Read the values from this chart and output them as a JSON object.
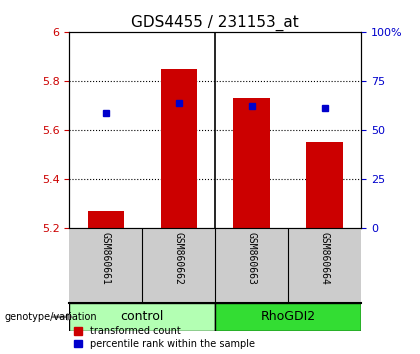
{
  "title": "GDS4455 / 231153_at",
  "samples": [
    "GSM860661",
    "GSM860662",
    "GSM860663",
    "GSM860664"
  ],
  "bar_bottoms": [
    5.2,
    5.2,
    5.2,
    5.2
  ],
  "bar_tops": [
    5.27,
    5.85,
    5.73,
    5.55
  ],
  "percentile_values": [
    5.67,
    5.71,
    5.7,
    5.69
  ],
  "ylim_left": [
    5.2,
    6.0
  ],
  "ylim_right": [
    0,
    100
  ],
  "yticks_left": [
    5.2,
    5.4,
    5.6,
    5.8,
    6.0
  ],
  "ytick_labels_left": [
    "5.2",
    "5.4",
    "5.6",
    "5.8",
    "6"
  ],
  "yticks_right": [
    0,
    25,
    50,
    75,
    100
  ],
  "ytick_labels_right": [
    "0",
    "25",
    "50",
    "75",
    "100%"
  ],
  "bar_color": "#CC0000",
  "percentile_color": "#0000CC",
  "left_tick_color": "#CC0000",
  "right_tick_color": "#0000CC",
  "title_color": "#000000",
  "control_color": "#b3ffb3",
  "rhogdi2_color": "#33dd33",
  "legend_entries": [
    "transformed count",
    "percentile rank within the sample"
  ],
  "genotype_label": "genotype/variation",
  "sample_area_bg": "#cccccc",
  "bar_width": 0.5,
  "group_label_fontsize": 9,
  "tick_fontsize": 8,
  "title_fontsize": 11
}
